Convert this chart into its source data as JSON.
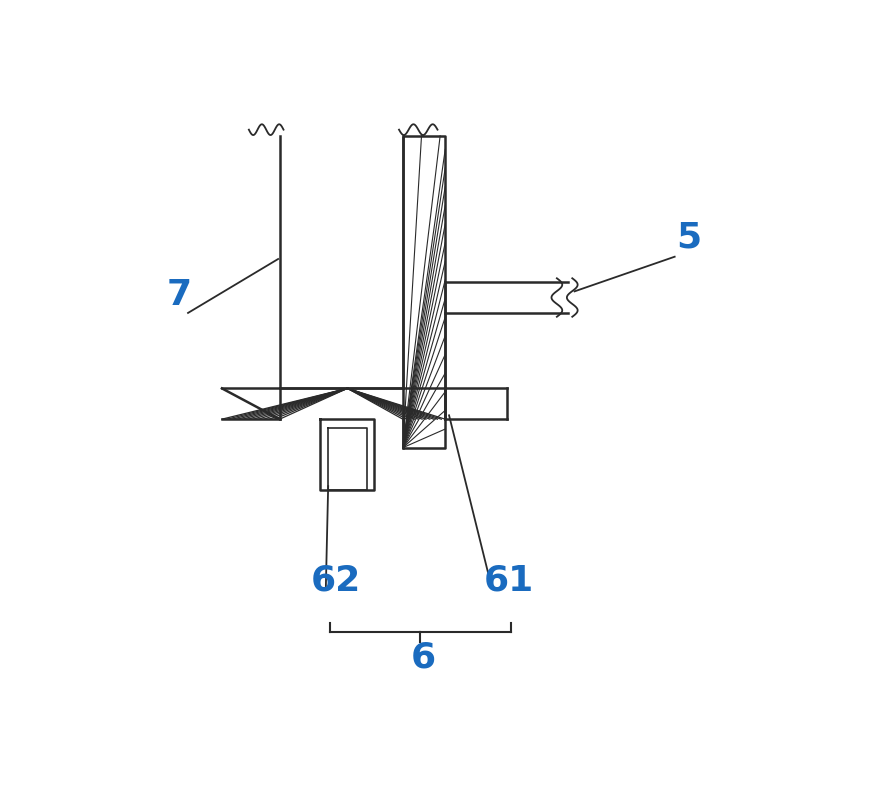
{
  "background_color": "#ffffff",
  "line_color": "#2a2a2a",
  "label_color": "#1a6bbf",
  "label_7": "7",
  "label_5": "5",
  "label_6": "6",
  "label_61": "61",
  "label_62": "62",
  "fig_width": 8.95,
  "fig_height": 8.11,
  "dpi": 100
}
